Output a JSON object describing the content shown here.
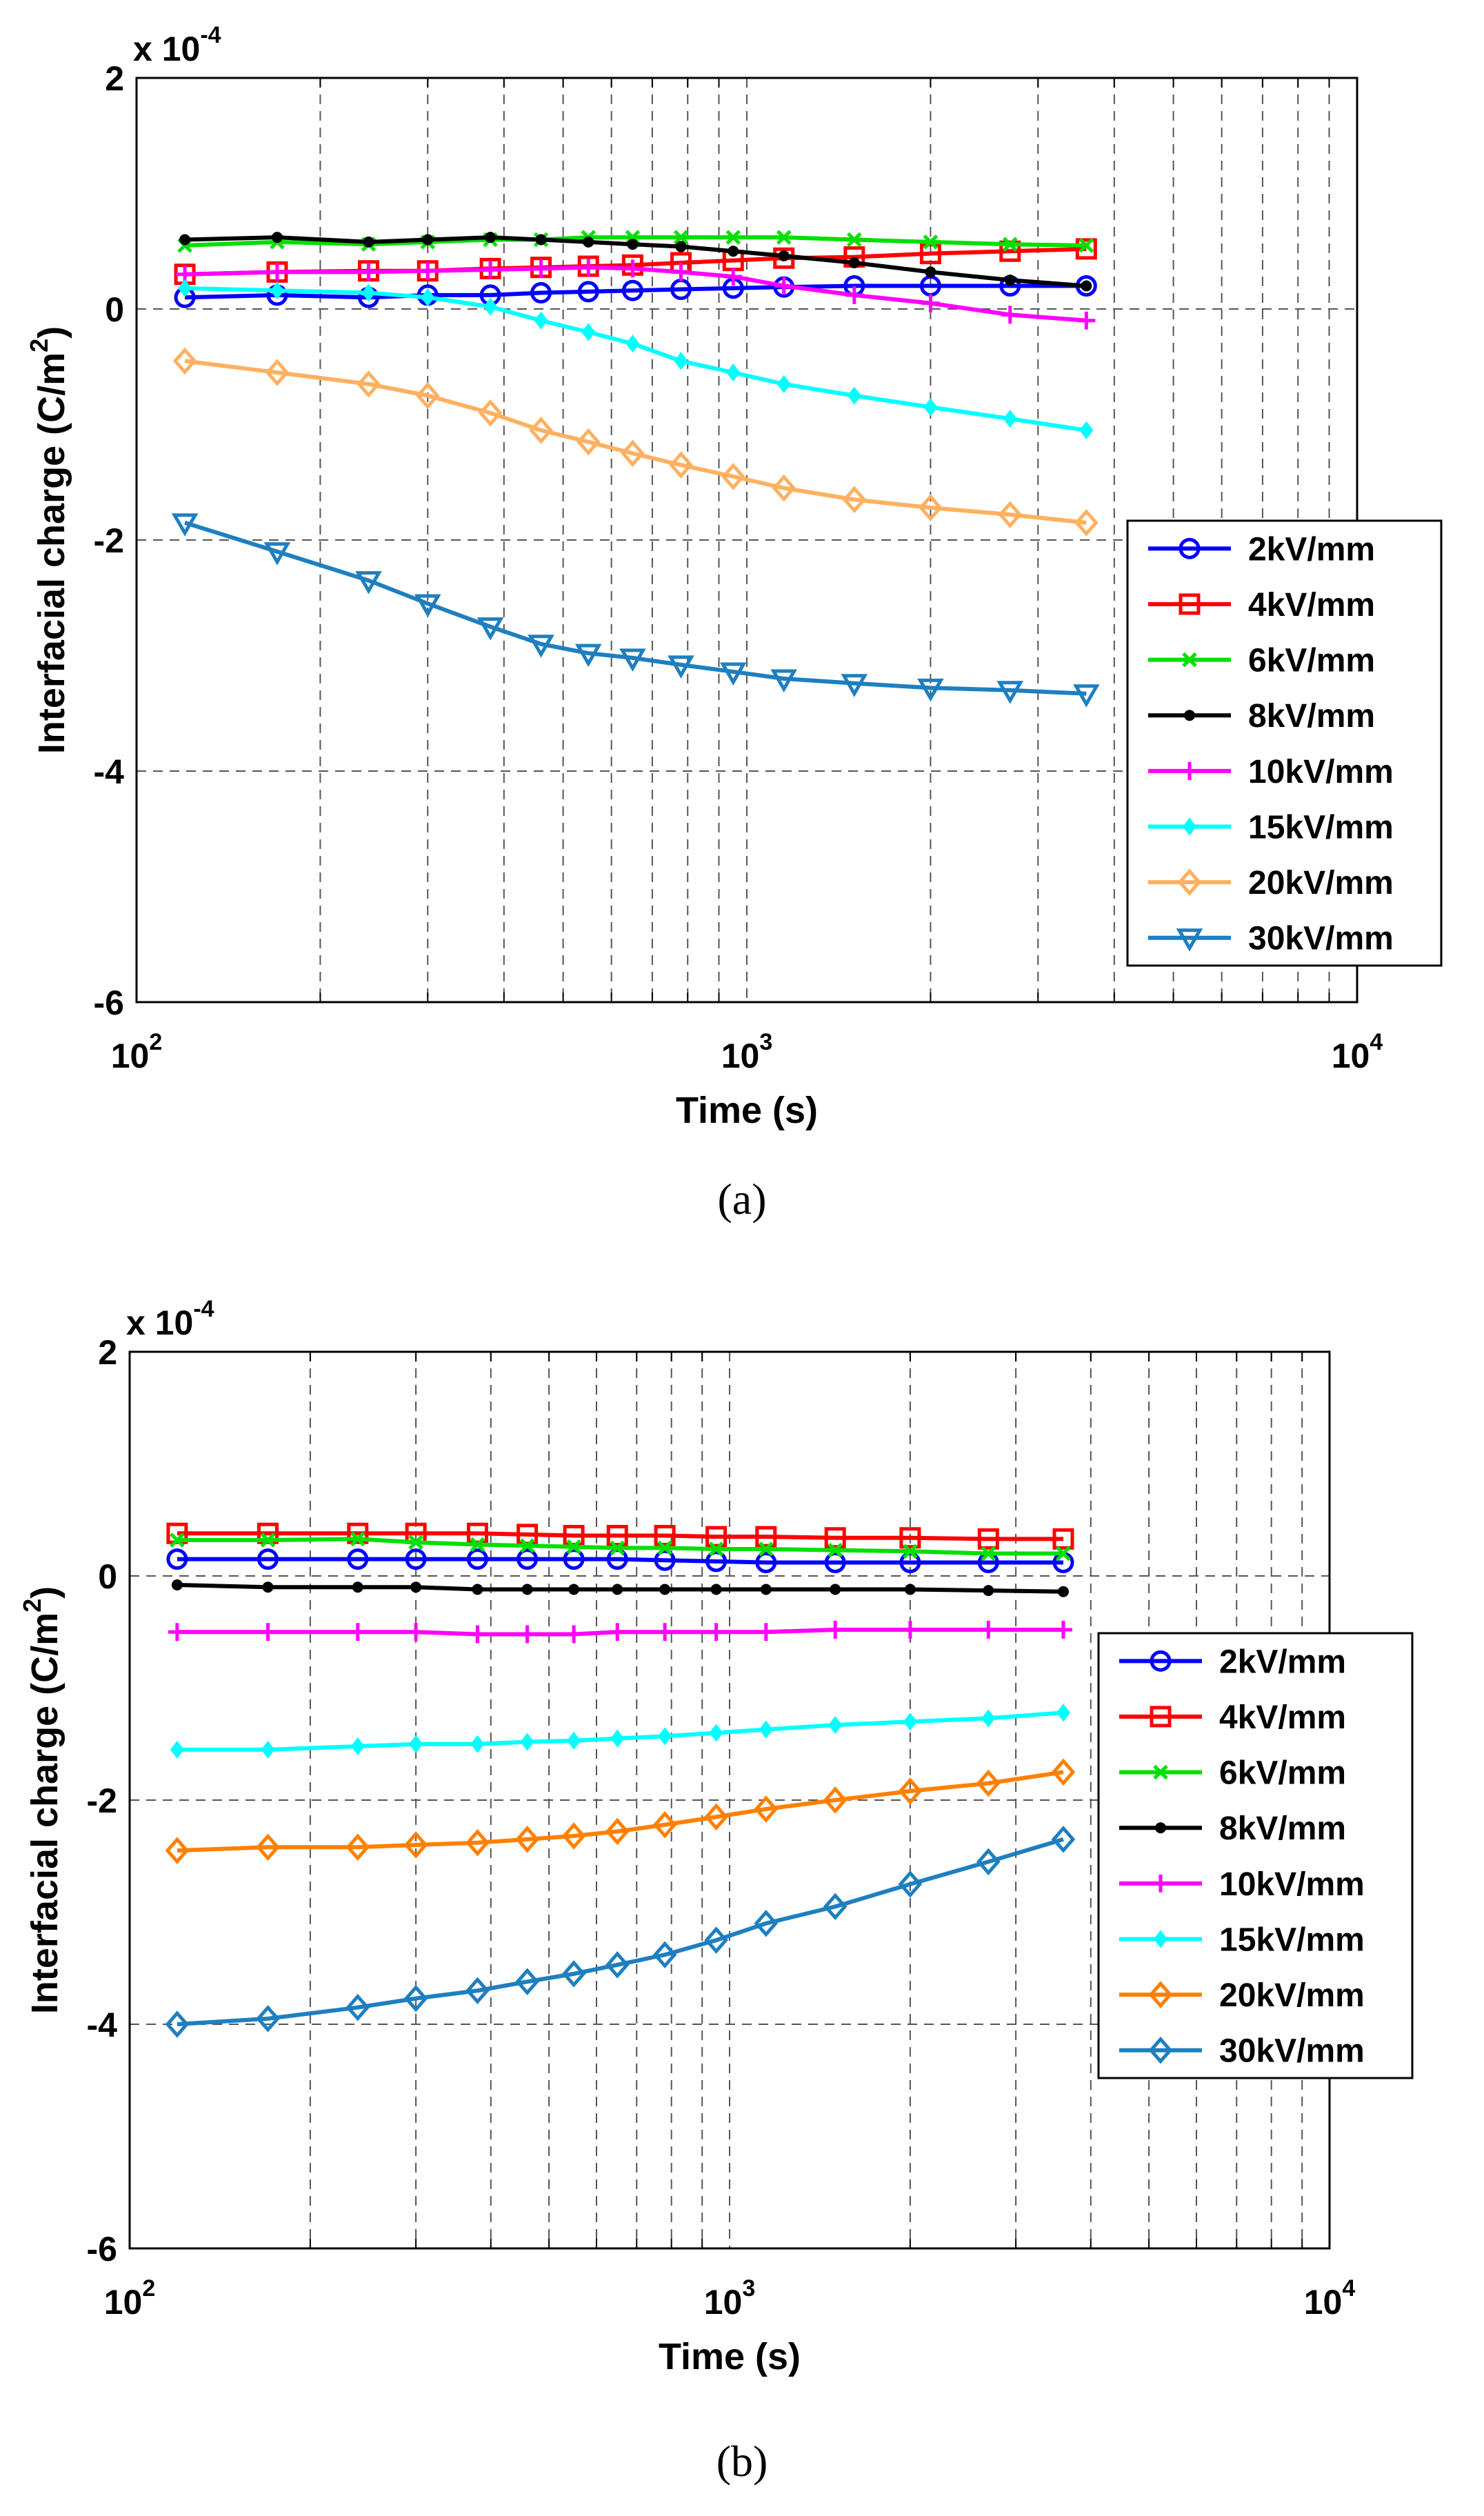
{
  "chart_data": [
    {
      "type": "line",
      "caption": "(a)",
      "xlabel": "Time (s)",
      "ylabel": "Interfacial charge (C/m",
      "ylabel_sup": "2",
      "ylabel_close": ")",
      "y_multiplier_base": "x 10",
      "y_multiplier_exp": "-4",
      "xscale": "log",
      "xlim": [
        100,
        10000
      ],
      "ylim": [
        -6,
        2
      ],
      "xticks": [
        {
          "b": "10",
          "e": "2"
        },
        {
          "b": "10",
          "e": "3"
        },
        {
          "b": "10",
          "e": "4"
        }
      ],
      "yticks": [
        "2",
        "0",
        "-2",
        "-4",
        "-6"
      ],
      "legend_position": "right-middle",
      "series": [
        {
          "name": "2kV/mm",
          "color": "#0000FF",
          "marker": "circle",
          "values": [
            0.1,
            0.12,
            0.1,
            0.12,
            0.12,
            0.14,
            0.15,
            0.16,
            0.17,
            0.18,
            0.19,
            0.2,
            0.2,
            0.2,
            0.2
          ]
        },
        {
          "name": "4kV/mm",
          "color": "#FF0000",
          "marker": "square",
          "values": [
            0.3,
            0.32,
            0.33,
            0.33,
            0.35,
            0.36,
            0.37,
            0.38,
            0.4,
            0.42,
            0.44,
            0.45,
            0.48,
            0.5,
            0.52
          ]
        },
        {
          "name": "6kV/mm",
          "color": "#00E000",
          "marker": "x",
          "values": [
            0.55,
            0.58,
            0.56,
            0.58,
            0.6,
            0.6,
            0.62,
            0.62,
            0.62,
            0.62,
            0.62,
            0.6,
            0.58,
            0.56,
            0.55
          ]
        },
        {
          "name": "8kV/mm",
          "color": "#000000",
          "marker": "dot",
          "values": [
            0.6,
            0.62,
            0.58,
            0.6,
            0.62,
            0.6,
            0.58,
            0.56,
            0.54,
            0.5,
            0.46,
            0.4,
            0.32,
            0.25,
            0.2
          ]
        },
        {
          "name": "10kV/mm",
          "color": "#FF00FF",
          "marker": "plus",
          "values": [
            0.3,
            0.32,
            0.32,
            0.33,
            0.34,
            0.35,
            0.36,
            0.35,
            0.32,
            0.28,
            0.2,
            0.12,
            0.05,
            -0.05,
            -0.1
          ]
        },
        {
          "name": "15kV/mm",
          "color": "#00FFFF",
          "marker": "diamond-filled",
          "values": [
            0.18,
            0.16,
            0.14,
            0.1,
            0.02,
            -0.1,
            -0.2,
            -0.3,
            -0.45,
            -0.55,
            -0.65,
            -0.75,
            -0.85,
            -0.95,
            -1.05
          ]
        },
        {
          "name": "20kV/mm",
          "color": "#FFB060",
          "marker": "diamond",
          "values": [
            -0.45,
            -0.55,
            -0.65,
            -0.75,
            -0.9,
            -1.05,
            -1.15,
            -1.25,
            -1.35,
            -1.45,
            -1.55,
            -1.65,
            -1.72,
            -1.78,
            -1.85
          ]
        },
        {
          "name": "30kV/mm",
          "color": "#1E7FC0",
          "marker": "triangle-down",
          "values": [
            -1.85,
            -2.1,
            -2.35,
            -2.55,
            -2.75,
            -2.9,
            -2.98,
            -3.02,
            -3.08,
            -3.14,
            -3.2,
            -3.24,
            -3.28,
            -3.3,
            -3.33
          ]
        }
      ]
    },
    {
      "type": "line",
      "caption": "(b)",
      "xlabel": "Time (s)",
      "ylabel": "Interfacial charge (C/m",
      "ylabel_sup": "2",
      "ylabel_close": ")",
      "y_multiplier_base": "x 10",
      "y_multiplier_exp": "-4",
      "xscale": "log",
      "xlim": [
        100,
        10000
      ],
      "ylim": [
        -6,
        2
      ],
      "xticks": [
        {
          "b": "10",
          "e": "2"
        },
        {
          "b": "10",
          "e": "3"
        },
        {
          "b": "10",
          "e": "4"
        }
      ],
      "yticks": [
        "2",
        "0",
        "-2",
        "-4",
        "-6"
      ],
      "legend_position": "right-middle",
      "series": [
        {
          "name": "2kV/mm",
          "color": "#0000FF",
          "marker": "circle",
          "values": [
            0.15,
            0.15,
            0.15,
            0.15,
            0.15,
            0.15,
            0.15,
            0.15,
            0.14,
            0.13,
            0.12,
            0.12,
            0.12,
            0.12,
            0.12
          ]
        },
        {
          "name": "4kV/mm",
          "color": "#FF0000",
          "marker": "square",
          "values": [
            0.38,
            0.38,
            0.38,
            0.38,
            0.38,
            0.37,
            0.36,
            0.36,
            0.36,
            0.35,
            0.35,
            0.34,
            0.34,
            0.33,
            0.33
          ]
        },
        {
          "name": "6kV/mm",
          "color": "#00E000",
          "marker": "x",
          "values": [
            0.32,
            0.32,
            0.33,
            0.3,
            0.28,
            0.27,
            0.26,
            0.25,
            0.25,
            0.24,
            0.24,
            0.23,
            0.22,
            0.2,
            0.2
          ]
        },
        {
          "name": "8kV/mm",
          "color": "#000000",
          "marker": "dot",
          "values": [
            -0.08,
            -0.1,
            -0.1,
            -0.1,
            -0.12,
            -0.12,
            -0.12,
            -0.12,
            -0.12,
            -0.12,
            -0.12,
            -0.12,
            -0.12,
            -0.13,
            -0.14
          ]
        },
        {
          "name": "10kV/mm",
          "color": "#FF00FF",
          "marker": "plus",
          "values": [
            -0.5,
            -0.5,
            -0.5,
            -0.5,
            -0.52,
            -0.52,
            -0.52,
            -0.5,
            -0.5,
            -0.5,
            -0.5,
            -0.48,
            -0.48,
            -0.48,
            -0.48
          ]
        },
        {
          "name": "15kV/mm",
          "color": "#00FFFF",
          "marker": "diamond-filled",
          "values": [
            -1.55,
            -1.55,
            -1.52,
            -1.5,
            -1.5,
            -1.48,
            -1.47,
            -1.45,
            -1.43,
            -1.4,
            -1.37,
            -1.33,
            -1.3,
            -1.27,
            -1.22
          ]
        },
        {
          "name": "20kV/mm",
          "color": "#FF8000",
          "marker": "diamond",
          "values": [
            -2.45,
            -2.42,
            -2.42,
            -2.4,
            -2.38,
            -2.35,
            -2.32,
            -2.28,
            -2.22,
            -2.15,
            -2.08,
            -2.0,
            -1.92,
            -1.85,
            -1.75
          ]
        },
        {
          "name": "30kV/mm",
          "color": "#1E7FC0",
          "marker": "diamond",
          "values": [
            -4.0,
            -3.95,
            -3.85,
            -3.77,
            -3.7,
            -3.62,
            -3.55,
            -3.47,
            -3.38,
            -3.25,
            -3.1,
            -2.95,
            -2.75,
            -2.55,
            -2.35
          ]
        }
      ]
    }
  ],
  "time_samples": [
    120,
    170,
    240,
    300,
    380,
    460,
    550,
    650,
    780,
    950,
    1150,
    1500,
    2000,
    2700,
    3600
  ]
}
